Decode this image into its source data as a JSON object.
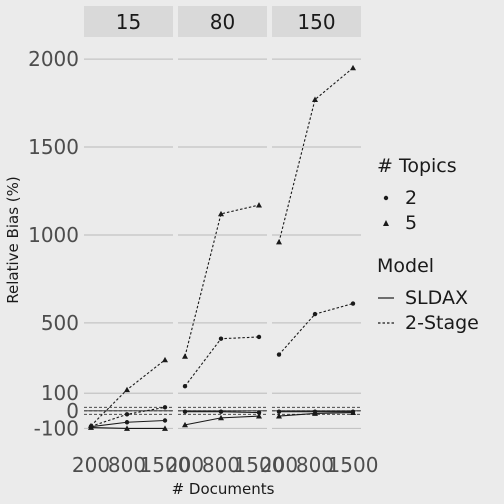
{
  "chart_data": {
    "type": "line",
    "facet_label": "",
    "facets": [
      "15",
      "80",
      "150"
    ],
    "x_categories": [
      "200",
      "800",
      "1500"
    ],
    "xlabel": "# Documents",
    "ylabel": "Relative Bias (%)",
    "yticks": [
      -100,
      0,
      100,
      500,
      1000,
      1500,
      2000
    ],
    "ylim": [
      -200,
      2120
    ],
    "grid": true,
    "legend_position": "right",
    "legend": {
      "topics_title": "# Topics",
      "topics": [
        "2",
        "5"
      ],
      "model_title": "Model",
      "models": [
        "SLDAX",
        "2-Stage"
      ]
    },
    "series": [
      {
        "facet": "15",
        "topics": "2",
        "model": "SLDAX",
        "values": [
          -90,
          -65,
          -55
        ]
      },
      {
        "facet": "15",
        "topics": "5",
        "model": "SLDAX",
        "values": [
          -95,
          -100,
          -100
        ]
      },
      {
        "facet": "15",
        "topics": "2",
        "model": "2-Stage",
        "values": [
          -88,
          -20,
          20
        ]
      },
      {
        "facet": "15",
        "topics": "5",
        "model": "2-Stage",
        "values": [
          -85,
          120,
          290
        ]
      },
      {
        "facet": "80",
        "topics": "2",
        "model": "SLDAX",
        "values": [
          -5,
          -5,
          -10
        ]
      },
      {
        "facet": "80",
        "topics": "5",
        "model": "SLDAX",
        "values": [
          -80,
          -40,
          -30
        ]
      },
      {
        "facet": "80",
        "topics": "2",
        "model": "2-Stage",
        "values": [
          140,
          410,
          420
        ]
      },
      {
        "facet": "80",
        "topics": "5",
        "model": "2-Stage",
        "values": [
          310,
          1120,
          1170
        ]
      },
      {
        "facet": "150",
        "topics": "2",
        "model": "SLDAX",
        "values": [
          -5,
          -5,
          -5
        ]
      },
      {
        "facet": "150",
        "topics": "5",
        "model": "SLDAX",
        "values": [
          -30,
          -15,
          -10
        ]
      },
      {
        "facet": "150",
        "topics": "2",
        "model": "2-Stage",
        "values": [
          320,
          550,
          610
        ]
      },
      {
        "facet": "150",
        "topics": "5",
        "model": "2-Stage",
        "values": [
          960,
          1770,
          1950
        ]
      }
    ],
    "reference_lines": [
      {
        "y": 0,
        "style": "solid"
      },
      {
        "y": 0,
        "style": "dashed"
      },
      {
        "y": -20,
        "style": "dashed"
      },
      {
        "y": 20,
        "style": "dashed"
      }
    ]
  }
}
